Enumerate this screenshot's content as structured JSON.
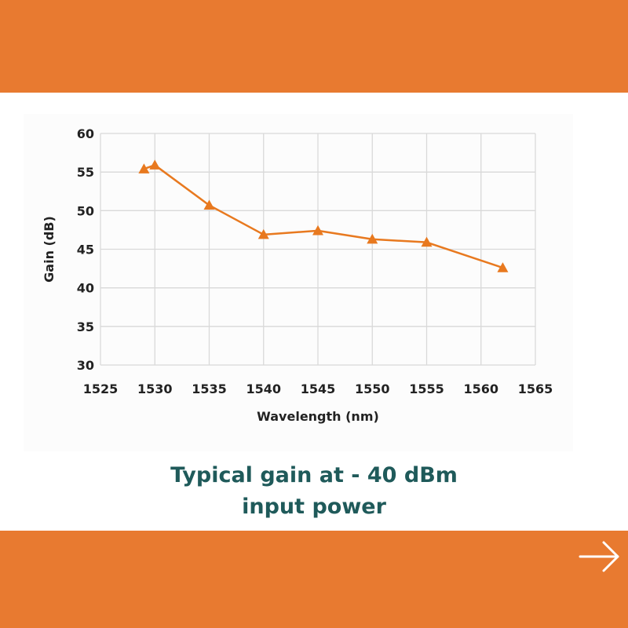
{
  "theme": {
    "band_color": "#E87A30",
    "series_color": "#E8791F",
    "caption_color": "#1F5A5A",
    "grid_color": "#D9D9D9"
  },
  "caption": {
    "line1": "Typical gain at - 40 dBm",
    "line2": "input power"
  },
  "nav": {
    "next_icon": "arrow-right-icon"
  },
  "chart_data": {
    "type": "line",
    "title": "",
    "xlabel": "Wavelength (nm)",
    "ylabel": "Gain (dB)",
    "xlim": [
      1525,
      1565
    ],
    "ylim": [
      30,
      60
    ],
    "xticks": [
      1525,
      1530,
      1535,
      1540,
      1545,
      1550,
      1555,
      1560,
      1565
    ],
    "yticks": [
      30,
      35,
      40,
      45,
      50,
      55,
      60
    ],
    "grid": true,
    "marker": "triangle",
    "series": [
      {
        "x": [
          1529,
          1530,
          1535,
          1540,
          1545,
          1550,
          1555,
          1562
        ],
        "y": [
          55.4,
          55.9,
          50.7,
          46.9,
          47.4,
          46.3,
          45.9,
          42.6
        ]
      }
    ]
  }
}
